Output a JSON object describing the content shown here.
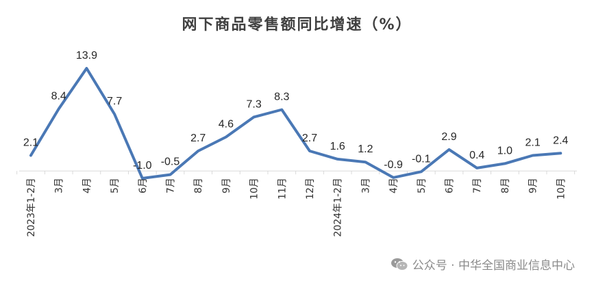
{
  "title": "网下商品零售额同比增速（%）",
  "watermark": "公众号 · 中华全国商业信息中心",
  "colors": {
    "line": "#4a78b5",
    "axis": "#d9d9d9",
    "text": "#262626"
  },
  "chart_data": {
    "type": "line",
    "title": "网下商品零售额同比增速（%）",
    "xlabel": "",
    "ylabel": "",
    "grid": false,
    "legend": "none",
    "ylim": [
      -1.0,
      13.9
    ],
    "categories": [
      "2023年1-2月",
      "3月",
      "4月",
      "5月",
      "6月",
      "7月",
      "8月",
      "9月",
      "10月",
      "11月",
      "12月",
      "2024年1-2月",
      "3月",
      "4月",
      "5月",
      "6月",
      "7月",
      "8月",
      "9月",
      "10月"
    ],
    "values": [
      2.1,
      8.4,
      13.9,
      7.7,
      -1.0,
      -0.5,
      2.7,
      4.6,
      7.3,
      8.3,
      2.7,
      1.6,
      1.2,
      -0.9,
      -0.1,
      2.9,
      0.4,
      1.0,
      2.1,
      2.4
    ],
    "data_labels": [
      "2.1",
      "8.4",
      "13.9",
      "7.7",
      "-1.0",
      "-0.5",
      "2.7",
      "4.6",
      "7.3",
      "8.3",
      "2.7",
      "1.6",
      "1.2",
      "-0.9",
      "-0.1",
      "2.9",
      "0.4",
      "1.0",
      "2.1",
      "2.4"
    ]
  }
}
